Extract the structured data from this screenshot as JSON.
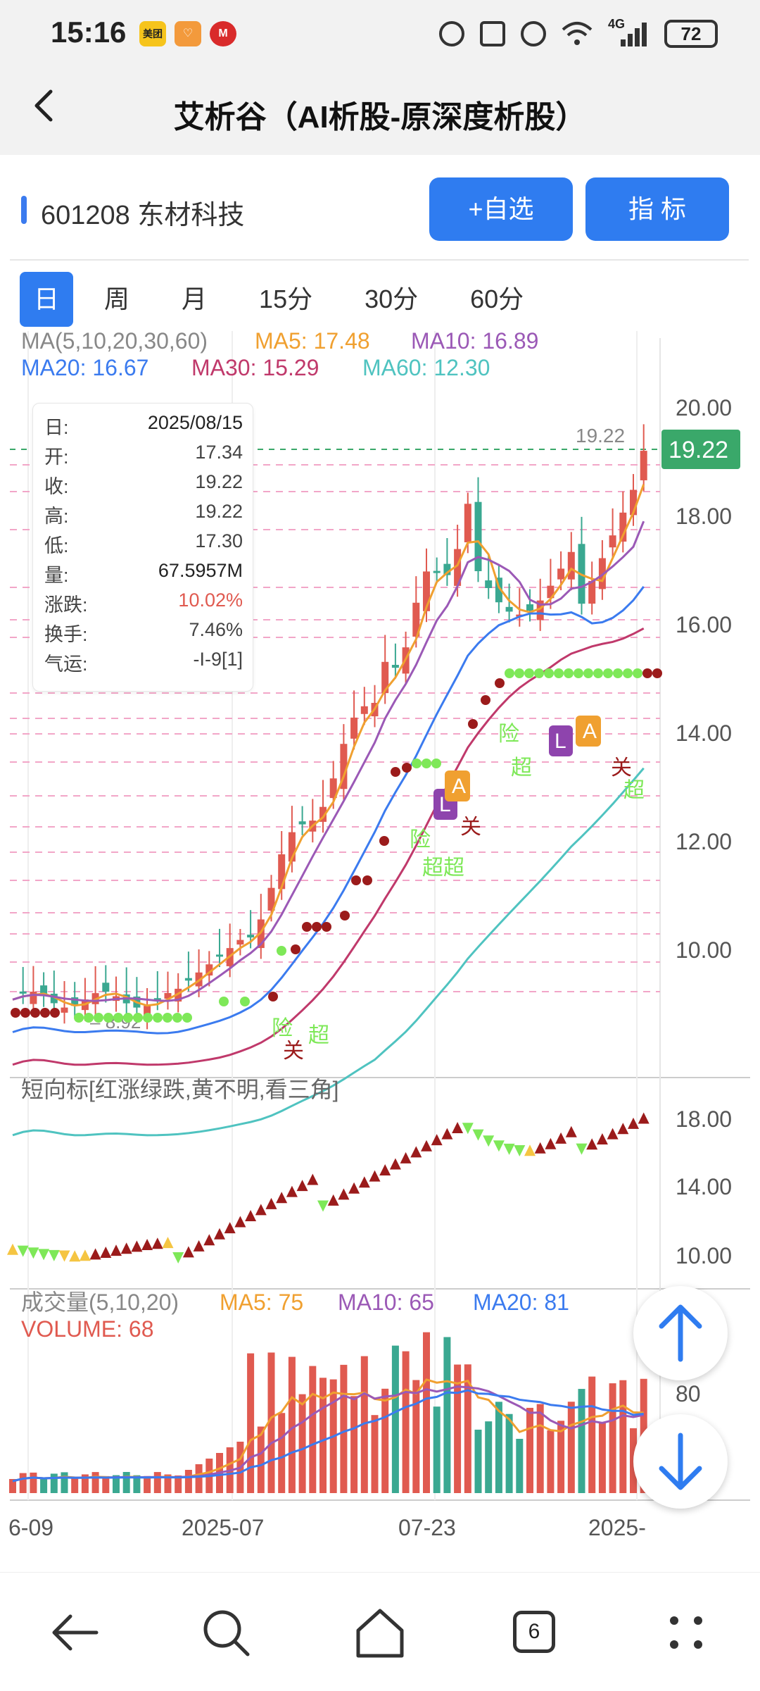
{
  "status_bar": {
    "time": "15:16",
    "app_badges": [
      {
        "name": "meituan-icon",
        "text": "美团",
        "color": "#f6c41c"
      },
      {
        "name": "heart-app-icon",
        "text": "♡",
        "color": "#f39a3c"
      },
      {
        "name": "bank-app-icon",
        "text": "M",
        "color": "#d92b2b"
      }
    ],
    "network": "4G",
    "battery": "72"
  },
  "header": {
    "back_icon": "chevron-left-icon",
    "title": "艾析谷（AI析股-原深度析股）"
  },
  "stock": {
    "label": "601208 东材科技",
    "add_watch_label": "+自选",
    "indicator_label": "指  标",
    "accent": "#2f7cf0"
  },
  "period_tabs": [
    {
      "label": "日",
      "active": true
    },
    {
      "label": "周",
      "active": false
    },
    {
      "label": "月",
      "active": false
    },
    {
      "label": "15分",
      "active": false
    },
    {
      "label": "30分",
      "active": false
    },
    {
      "label": "60分",
      "active": false
    }
  ],
  "main_panel": {
    "ma_label": "MA(5,10,20,30,60)",
    "ma_values": [
      {
        "label": "MA5: 17.48",
        "color": "#f0a030"
      },
      {
        "label": "MA10: 16.89",
        "color": "#9b59b6"
      },
      {
        "label": "MA20: 16.67",
        "color": "#3b7bef"
      },
      {
        "label": "MA30: 15.29",
        "color": "#c0396b"
      },
      {
        "label": "MA60: 12.30",
        "color": "#4fc3c0"
      }
    ],
    "y_ticks": [
      "20.00",
      "18.00",
      "16.00",
      "14.00",
      "12.00",
      "10.00"
    ],
    "current_price_tag": "19.22",
    "high_label": "19.22",
    "low_label": "8.92",
    "signals": {
      "danger": "险",
      "super": "超",
      "close": "关",
      "L": "L",
      "A": "A",
      "superscript": "超超"
    }
  },
  "info_box": {
    "rows": [
      {
        "k": "日:",
        "v": "2025/08/15",
        "color": "#222"
      },
      {
        "k": "开:",
        "v": "17.34",
        "color": "#444"
      },
      {
        "k": "收:",
        "v": "19.22",
        "color": "#444"
      },
      {
        "k": "高:",
        "v": "19.22",
        "color": "#444"
      },
      {
        "k": "低:",
        "v": "17.30",
        "color": "#444"
      },
      {
        "k": "量:",
        "v": "67.5957M",
        "color": "#222"
      },
      {
        "k": "涨跌:",
        "v": "10.02%",
        "color": "#e05a50"
      },
      {
        "k": "换手:",
        "v": "7.46%",
        "color": "#444"
      },
      {
        "k": "气运:",
        "v": "-I-9[1]",
        "color": "#444"
      }
    ]
  },
  "short_panel": {
    "label": "短向标[红涨绿跌,黄不明,看三角]",
    "y_ticks": [
      "18.00",
      "14.00",
      "10.00"
    ]
  },
  "volume_panel": {
    "label": "成交量(5,10,20)",
    "ma_values": [
      {
        "label": "MA5: 75",
        "color": "#f0a030"
      },
      {
        "label": "MA10: 65",
        "color": "#9b59b6"
      },
      {
        "label": "MA20: 81",
        "color": "#3b7bef"
      }
    ],
    "volume_label": "VOLUME: 68",
    "volume_color": "#e05a50",
    "y_tick": "80"
  },
  "x_axis": [
    "6-09",
    "2025-07",
    "07-23",
    "2025-"
  ],
  "fab": {
    "up_icon": "arrow-up-icon",
    "down_icon": "arrow-down-icon"
  },
  "nav_bar": {
    "items": [
      "back-arrow-icon",
      "search-icon",
      "home-icon",
      "tabs-count-icon",
      "menu-dots-icon"
    ],
    "tabs_count": "6"
  }
}
